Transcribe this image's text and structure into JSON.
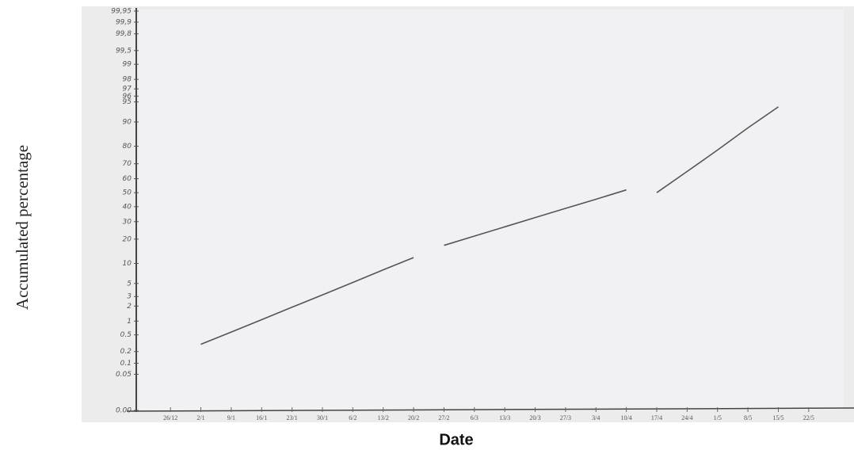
{
  "chart_data": {
    "type": "line",
    "x_label": "Date",
    "y_label": "Accumulated percentage",
    "y_scale": "probability",
    "categories": [
      "26/12",
      "2/1",
      "9/1",
      "16/1",
      "23/1",
      "30/1",
      "6/2",
      "13/2",
      "20/2",
      "27/2",
      "6/3",
      "13/3",
      "20/3",
      "27/3",
      "3/4",
      "10/4",
      "17/4",
      "24/4",
      "1/5",
      "8/5",
      "15/5",
      "22/5"
    ],
    "series": [
      {
        "color": "#555555",
        "values": [
          null,
          0.3,
          0.58,
          1.07,
          1.9,
          3.2,
          5.2,
          8.1,
          12,
          null,
          null,
          null,
          null,
          null,
          null,
          null,
          null,
          null,
          null,
          null,
          null,
          null
        ]
      },
      {
        "color": "#555555",
        "values": [
          null,
          null,
          null,
          null,
          null,
          null,
          null,
          null,
          null,
          17,
          21.6,
          26.8,
          32.6,
          38.8,
          45.3,
          52,
          null,
          null,
          null,
          null,
          null,
          null
        ]
      },
      {
        "color": "#555555",
        "values": [
          null,
          null,
          null,
          null,
          null,
          null,
          null,
          null,
          null,
          null,
          null,
          null,
          null,
          null,
          null,
          null,
          50,
          65,
          78,
          88,
          94,
          null
        ]
      }
    ],
    "ylim": [
      0.004,
      99.95
    ],
    "yticks": [
      {
        "value": 99.95,
        "label": "99,95"
      },
      {
        "value": 99.9,
        "label": "99,9"
      },
      {
        "value": 99.8,
        "label": "99,8"
      },
      {
        "value": 99.5,
        "label": "99,5"
      },
      99,
      98,
      97,
      96,
      95,
      90,
      80,
      70,
      60,
      50,
      40,
      30,
      20,
      10,
      5,
      3,
      2,
      1,
      0.5,
      0.2,
      0.1,
      0.05,
      {
        "value": 0.004,
        "label": "0.00"
      }
    ],
    "grid": false
  }
}
